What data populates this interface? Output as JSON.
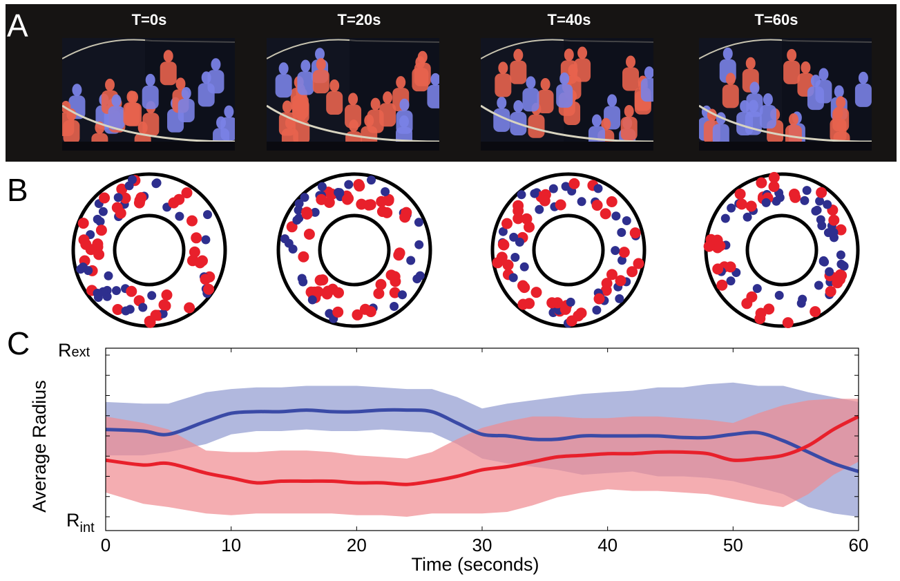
{
  "figure": {
    "panels": [
      "A",
      "B",
      "C"
    ],
    "time_labels": [
      "T=0s",
      "T=20s",
      "T=40s",
      "T=60s"
    ]
  },
  "colors": {
    "red": "#e8202b",
    "blue": "#2e2f8e",
    "blue_line": "#3a4aa6",
    "blue_band": "#a3abd8",
    "red_band": "#f08a90",
    "frame_red": "#e8634e",
    "frame_blue": "#7a82e6"
  },
  "chart_data": {
    "type": "line",
    "xlabel": "Time (seconds)",
    "ylabel": "Average Radius",
    "y_top_label": {
      "main": "R",
      "sub": "ext"
    },
    "y_bottom_label": {
      "main": "R",
      "sub": "int"
    },
    "xlim": [
      0,
      60
    ],
    "ylim": [
      0,
      1
    ],
    "x_ticks": [
      0,
      10,
      20,
      30,
      40,
      50,
      60
    ],
    "x_tick_labels": [
      "0",
      "10",
      "20",
      "30",
      "40",
      "50",
      "60"
    ],
    "x": [
      0,
      3,
      5,
      8,
      10,
      12,
      14,
      16,
      18,
      20,
      22,
      24,
      26,
      28,
      30,
      32,
      34,
      36,
      38,
      40,
      42,
      44,
      46,
      48,
      50,
      52,
      54,
      56,
      58,
      60
    ],
    "series": [
      {
        "color": "blue",
        "values": [
          0.54,
          0.53,
          0.51,
          0.59,
          0.64,
          0.65,
          0.65,
          0.66,
          0.65,
          0.65,
          0.66,
          0.66,
          0.65,
          0.58,
          0.51,
          0.5,
          0.48,
          0.48,
          0.5,
          0.5,
          0.5,
          0.5,
          0.49,
          0.49,
          0.51,
          0.52,
          0.47,
          0.4,
          0.33,
          0.28
        ],
        "upper": [
          0.71,
          0.7,
          0.7,
          0.77,
          0.79,
          0.8,
          0.8,
          0.81,
          0.81,
          0.81,
          0.8,
          0.79,
          0.79,
          0.74,
          0.67,
          0.7,
          0.72,
          0.74,
          0.76,
          0.77,
          0.78,
          0.8,
          0.8,
          0.82,
          0.83,
          0.81,
          0.81,
          0.77,
          0.74,
          0.71
        ],
        "lower": [
          0.38,
          0.38,
          0.4,
          0.45,
          0.51,
          0.53,
          0.53,
          0.54,
          0.53,
          0.53,
          0.54,
          0.53,
          0.52,
          0.45,
          0.36,
          0.33,
          0.31,
          0.29,
          0.26,
          0.27,
          0.28,
          0.25,
          0.25,
          0.24,
          0.22,
          0.18,
          0.14,
          0.06,
          0.02,
          0.0
        ]
      },
      {
        "color": "red",
        "values": [
          0.35,
          0.32,
          0.33,
          0.27,
          0.24,
          0.21,
          0.22,
          0.22,
          0.22,
          0.21,
          0.21,
          0.2,
          0.22,
          0.25,
          0.29,
          0.31,
          0.34,
          0.37,
          0.38,
          0.39,
          0.39,
          0.4,
          0.4,
          0.39,
          0.35,
          0.36,
          0.38,
          0.44,
          0.54,
          0.62
        ],
        "upper": [
          0.62,
          0.58,
          0.54,
          0.41,
          0.4,
          0.4,
          0.41,
          0.41,
          0.4,
          0.38,
          0.37,
          0.36,
          0.4,
          0.48,
          0.55,
          0.59,
          0.62,
          0.62,
          0.61,
          0.61,
          0.62,
          0.62,
          0.61,
          0.6,
          0.58,
          0.64,
          0.69,
          0.72,
          0.73,
          0.73
        ],
        "lower": [
          0.15,
          0.08,
          0.06,
          0.02,
          0.01,
          0.02,
          0.02,
          0.02,
          0.02,
          0.01,
          0.01,
          0.0,
          0.02,
          0.02,
          0.02,
          0.03,
          0.07,
          0.12,
          0.15,
          0.17,
          0.16,
          0.16,
          0.15,
          0.14,
          0.11,
          0.08,
          0.06,
          0.14,
          0.26,
          0.34
        ]
      }
    ]
  }
}
